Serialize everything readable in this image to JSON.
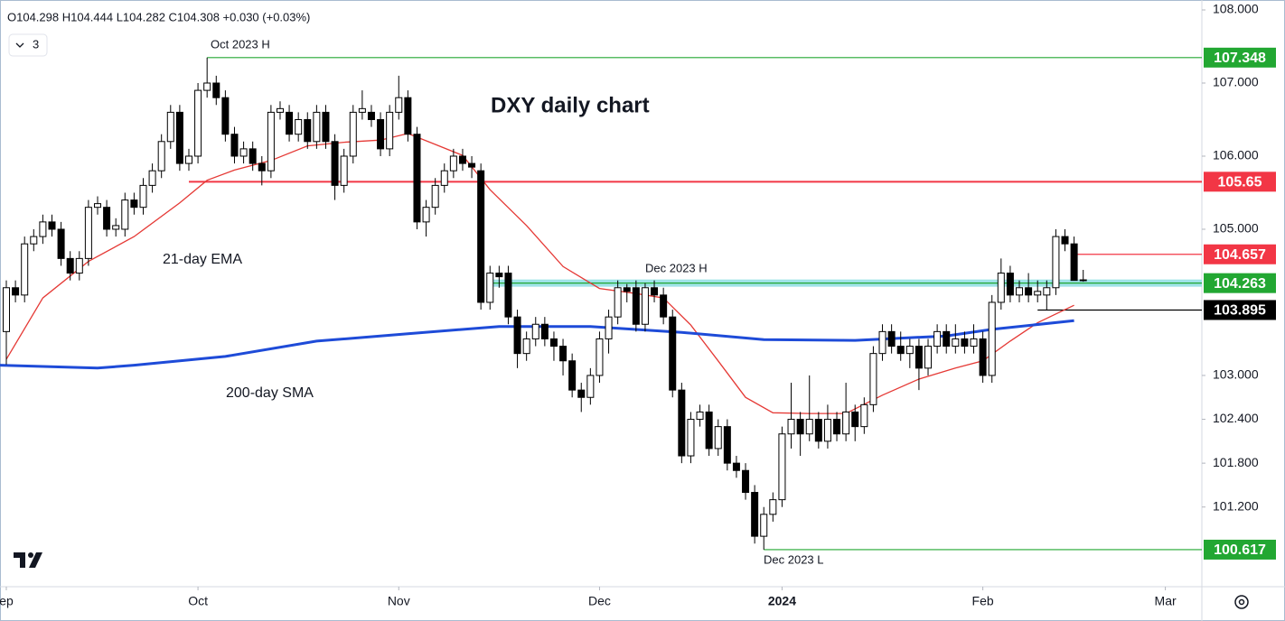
{
  "chart_data": {
    "type": "candlestick",
    "title": "DXY daily chart",
    "header": "O104.298 H104.444 L104.282 C104.308 +0.030 (+0.03%)",
    "indicator_count": "3",
    "xlim": [
      -0.693,
      131.0
    ],
    "ylim": [
      100.11,
      108.136
    ],
    "xticks": [
      {
        "value": 0,
        "label": "ep"
      },
      {
        "value": 21,
        "label": "Oct"
      },
      {
        "value": 43,
        "label": "Nov"
      },
      {
        "value": 65,
        "label": "Dec"
      },
      {
        "value": 85,
        "label": "2024"
      },
      {
        "value": 107,
        "label": "Feb"
      },
      {
        "value": 127,
        "label": "Mar"
      }
    ],
    "yticks": [
      {
        "value": 108,
        "label": "108.000"
      },
      {
        "value": 107,
        "label": "107.000"
      },
      {
        "value": 106,
        "label": "106.000"
      },
      {
        "value": 105,
        "label": "105.000"
      },
      {
        "value": 103,
        "label": "103.000"
      },
      {
        "value": 102.4,
        "label": "102.400"
      },
      {
        "value": 101.8,
        "label": "101.800"
      },
      {
        "value": 101.2,
        "label": "101.200"
      }
    ],
    "grid": false,
    "up_color": "#ffffff",
    "down_color": "#000000",
    "open": [
      103.6,
      104.2,
      104.1,
      104.8,
      104.9,
      105.1,
      105.0,
      104.6,
      104.4,
      104.6,
      105.3,
      105.3,
      105.0,
      105.0,
      105.4,
      105.3,
      105.6,
      105.8,
      106.2,
      106.6,
      105.9,
      106.0,
      106.9,
      107.0,
      106.8,
      106.3,
      106.0,
      106.1,
      105.9,
      105.8,
      106.6,
      106.6,
      106.3,
      106.5,
      106.2,
      106.6,
      106.2,
      105.6,
      106.0,
      106.6,
      106.6,
      106.5,
      106.1,
      106.6,
      106.8,
      106.3,
      105.1,
      105.3,
      105.6,
      105.8,
      106.0,
      105.9,
      105.8,
      104.0,
      104.4,
      104.4,
      103.8,
      103.3,
      103.5,
      103.7,
      103.5,
      103.4,
      103.2,
      102.8,
      102.7,
      103.0,
      103.5,
      103.8,
      104.2,
      104.2,
      103.7,
      104.2,
      104.1,
      103.8,
      102.8,
      101.9,
      102.4,
      102.5,
      102.0,
      102.3,
      101.8,
      101.7,
      101.4,
      100.8,
      101.1,
      101.3,
      102.2,
      102.4,
      102.2,
      102.4,
      102.1,
      102.4,
      102.2,
      102.5,
      102.3,
      102.6,
      103.3,
      103.6,
      103.4,
      103.3,
      103.4,
      103.1,
      103.4,
      103.6,
      103.4,
      103.5,
      103.4,
      103.5,
      103.0,
      104.0,
      104.4,
      104.1,
      104.2,
      104.1,
      104.1,
      104.2,
      104.9,
      104.8,
      104.298
    ],
    "high": [
      104.3,
      104.3,
      104.9,
      105.0,
      105.2,
      105.2,
      105.1,
      104.7,
      104.7,
      105.4,
      105.45,
      105.4,
      105.15,
      105.5,
      105.5,
      105.7,
      105.9,
      106.3,
      106.7,
      106.7,
      106.1,
      107.0,
      107.348,
      107.1,
      106.9,
      106.4,
      106.2,
      106.2,
      106.0,
      106.7,
      106.75,
      106.7,
      106.6,
      106.6,
      106.7,
      106.7,
      106.3,
      106.1,
      106.7,
      106.9,
      106.7,
      106.6,
      106.7,
      107.1,
      106.9,
      106.4,
      105.4,
      105.7,
      105.9,
      106.1,
      106.1,
      106.0,
      105.9,
      104.5,
      104.5,
      104.5,
      103.9,
      103.6,
      103.8,
      103.8,
      103.6,
      103.5,
      103.3,
      102.9,
      103.1,
      103.6,
      103.9,
      104.3,
      104.25,
      104.3,
      104.263,
      104.3,
      104.2,
      103.9,
      102.9,
      102.5,
      102.6,
      102.6,
      102.4,
      102.4,
      101.9,
      101.8,
      101.5,
      101.2,
      101.4,
      102.3,
      102.9,
      102.5,
      103.0,
      102.5,
      102.6,
      102.5,
      102.9,
      102.6,
      102.7,
      103.4,
      103.7,
      103.7,
      103.6,
      103.5,
      103.5,
      103.5,
      103.7,
      103.7,
      103.7,
      103.6,
      103.7,
      103.6,
      104.1,
      104.6,
      104.5,
      104.3,
      104.4,
      104.3,
      104.3,
      105.0,
      105.0,
      104.9,
      104.444
    ],
    "low": [
      103.15,
      104.0,
      104.0,
      104.7,
      104.8,
      104.9,
      104.5,
      104.3,
      104.3,
      104.5,
      105.2,
      104.9,
      104.9,
      104.9,
      105.2,
      105.2,
      105.5,
      105.7,
      106.1,
      105.8,
      105.8,
      105.9,
      106.8,
      106.7,
      106.2,
      105.9,
      105.9,
      105.8,
      105.6,
      105.7,
      106.5,
      106.2,
      106.2,
      106.1,
      106.1,
      106.1,
      105.4,
      105.5,
      105.9,
      106.5,
      106.4,
      106.0,
      106.0,
      106.5,
      106.2,
      105.0,
      104.9,
      105.2,
      105.5,
      105.7,
      105.8,
      105.7,
      103.9,
      103.9,
      104.2,
      103.7,
      103.1,
      103.2,
      103.4,
      103.4,
      103.2,
      103.0,
      102.7,
      102.5,
      102.6,
      102.9,
      103.3,
      103.7,
      104.0,
      103.6,
      103.6,
      104.0,
      103.7,
      102.7,
      101.8,
      101.8,
      102.3,
      101.9,
      101.9,
      101.7,
      101.6,
      101.3,
      100.7,
      100.617,
      101.0,
      101.2,
      102.0,
      101.9,
      102.1,
      102.0,
      102.0,
      102.1,
      102.1,
      102.1,
      102.2,
      102.5,
      103.2,
      103.3,
      103.2,
      103.1,
      102.8,
      103.0,
      103.3,
      103.3,
      103.3,
      103.3,
      103.3,
      102.9,
      102.9,
      103.9,
      104.0,
      104.0,
      104.0,
      104.0,
      103.9,
      104.1,
      104.7,
      104.3,
      104.282
    ],
    "close": [
      104.2,
      104.1,
      104.8,
      104.9,
      105.1,
      105.0,
      104.6,
      104.4,
      104.6,
      105.3,
      105.35,
      105.0,
      105.05,
      105.4,
      105.3,
      105.6,
      105.8,
      106.2,
      106.6,
      105.9,
      106.0,
      106.9,
      107.0,
      106.8,
      106.3,
      106.0,
      106.1,
      105.9,
      105.8,
      106.6,
      106.65,
      106.3,
      106.5,
      106.2,
      106.6,
      106.2,
      105.6,
      106.0,
      106.6,
      106.65,
      106.5,
      106.1,
      106.6,
      106.8,
      106.3,
      105.1,
      105.3,
      105.6,
      105.8,
      106.0,
      105.9,
      105.85,
      104.0,
      104.4,
      104.35,
      103.8,
      103.3,
      103.5,
      103.7,
      103.5,
      103.4,
      103.2,
      102.8,
      102.7,
      103.0,
      103.5,
      103.8,
      104.2,
      104.15,
      103.7,
      104.2,
      104.1,
      103.8,
      102.8,
      101.9,
      102.4,
      102.5,
      102.0,
      102.3,
      101.8,
      101.7,
      101.4,
      100.8,
      101.1,
      101.3,
      102.2,
      102.4,
      102.2,
      102.4,
      102.1,
      102.4,
      102.2,
      102.5,
      102.3,
      102.6,
      103.3,
      103.6,
      103.4,
      103.3,
      103.4,
      103.1,
      103.4,
      103.6,
      103.4,
      103.5,
      103.4,
      103.5,
      103.0,
      104.0,
      104.4,
      104.1,
      104.2,
      104.1,
      104.15,
      104.2,
      104.9,
      104.8,
      104.3,
      104.308
    ],
    "series": [
      {
        "name": "21-day EMA",
        "color": "#e53935",
        "x": [
          0,
          4,
          9,
          14,
          19,
          22,
          25,
          29,
          33,
          37,
          41,
          44,
          47,
          50,
          53,
          57,
          61,
          65,
          69,
          72,
          75,
          78,
          81,
          84,
          88,
          92,
          96,
          100,
          104,
          107,
          110,
          113,
          117
        ],
        "values": [
          103.22,
          104.06,
          104.56,
          104.9,
          105.36,
          105.67,
          105.81,
          105.94,
          106.14,
          106.19,
          106.22,
          106.31,
          106.16,
          106.01,
          105.54,
          105.05,
          104.49,
          104.19,
          104.12,
          104.06,
          103.69,
          103.2,
          102.7,
          102.49,
          102.48,
          102.48,
          102.73,
          102.95,
          103.1,
          103.2,
          103.47,
          103.72,
          103.96
        ]
      },
      {
        "name": "200-day SMA",
        "color": "#1e4bd8",
        "x": [
          -0.7,
          10,
          14,
          24,
          34,
          44,
          54,
          64,
          74,
          83,
          93,
          103,
          108,
          117
        ],
        "values": [
          103.14,
          103.1,
          103.14,
          103.26,
          103.47,
          103.57,
          103.67,
          103.67,
          103.59,
          103.49,
          103.48,
          103.54,
          103.63,
          103.75
        ]
      }
    ],
    "levels": [
      {
        "value": 107.348,
        "x": 22,
        "color": "#22a732"
      },
      {
        "value": 105.65,
        "x": 20,
        "color": "#f23645"
      },
      {
        "value": 104.657,
        "x": 117,
        "color": "#f23645"
      },
      {
        "value": 104.263,
        "x": 53,
        "color": "#22a732",
        "band_color": "#9fe3e8"
      },
      {
        "value": 103.895,
        "x": 113,
        "color": "#000000"
      },
      {
        "value": 100.617,
        "x": 83,
        "color": "#22a732"
      }
    ],
    "annotations": [
      "Oct 2023 H",
      "Dec 2023 H",
      "Dec 2023 L"
    ]
  }
}
